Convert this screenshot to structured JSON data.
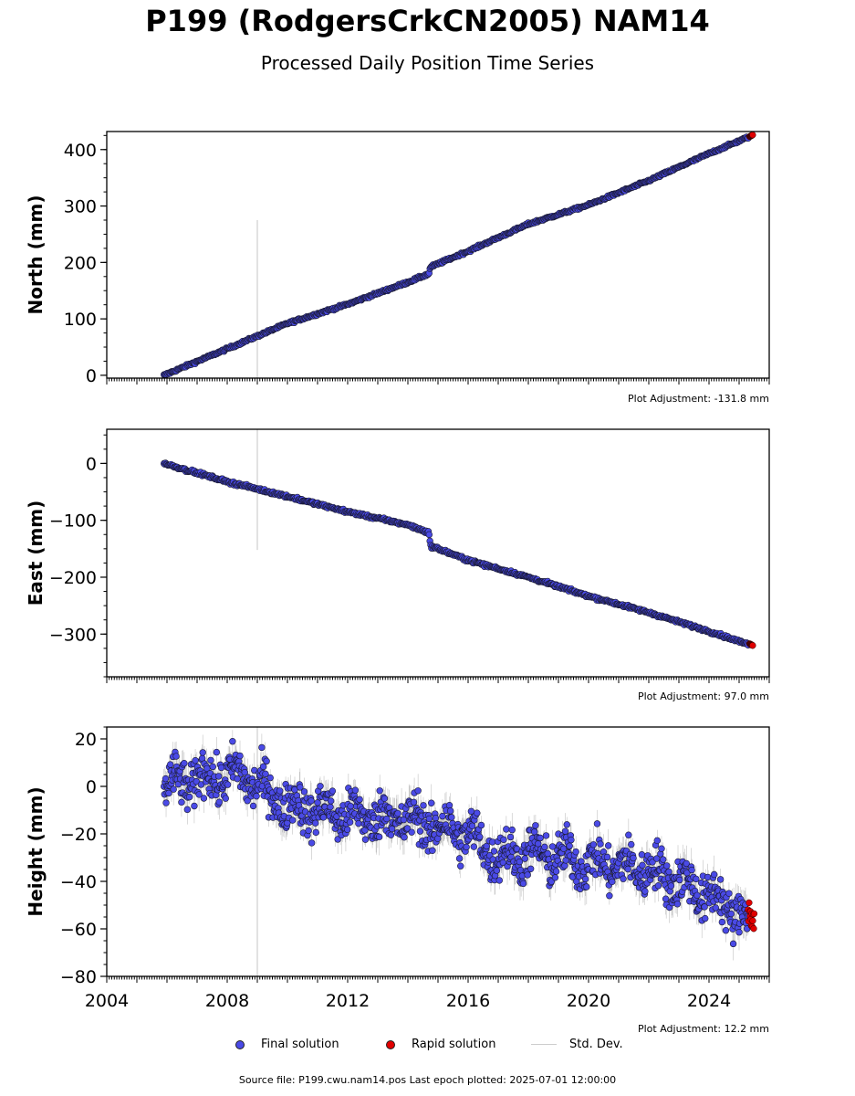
{
  "header": {
    "title": "P199 (RodgersCrkCN2005) NAM14",
    "subtitle": "Processed Daily Position Time Series"
  },
  "legend": {
    "final_label": "Final solution",
    "rapid_label": "Rapid solution",
    "std_label": "Std. Dev."
  },
  "footer": {
    "source_text": "Source file: P199.cwu.nam14.pos  Last epoch plotted: 2025-07-01 12:00:00"
  },
  "colors": {
    "final": "#4a4ae6",
    "rapid": "#e00000",
    "std_dev": "#bbbbbb",
    "marker_edge": "#1a1a33"
  },
  "chart_data": [
    {
      "type": "scatter",
      "ylabel": "North (mm)",
      "adjustment_label": "Plot Adjustment: -131.8 mm",
      "xlim": [
        2004,
        2026
      ],
      "ylim": [
        -5,
        432
      ],
      "y_ticks": [
        0,
        100,
        200,
        300,
        400
      ],
      "y_tick_labels": [
        "0",
        "100",
        "200",
        "300",
        "400"
      ],
      "series": [
        {
          "x": [
            2005.9,
            2008.0,
            2010.0,
            2012.0,
            2014.0,
            2014.7,
            2014.75,
            2016.0,
            2018.0,
            2020.0,
            2022.0,
            2024.0,
            2025.3
          ],
          "y": [
            0,
            47,
            92,
            126,
            165,
            180,
            192,
            220,
            268,
            302,
            345,
            393,
            422
          ]
        }
      ],
      "rapid": {
        "x": [
          2025.35,
          2025.45
        ],
        "y": [
          423,
          426
        ]
      },
      "spike": {
        "x": 2009.0,
        "y_low": -5,
        "y_high": 275
      },
      "noise": 1.5
    },
    {
      "type": "scatter",
      "ylabel": "East (mm)",
      "adjustment_label": "Plot Adjustment: 97.0 mm",
      "xlim": [
        2004,
        2026
      ],
      "ylim": [
        -375,
        60
      ],
      "y_ticks": [
        0,
        -100,
        -200,
        -300
      ],
      "y_tick_labels": [
        "0",
        "−100",
        "−200",
        "−300"
      ],
      "series": [
        {
          "x": [
            2005.9,
            2008.0,
            2010.0,
            2012.0,
            2014.0,
            2014.7,
            2014.75,
            2016.0,
            2018.0,
            2020.0,
            2022.0,
            2024.0,
            2025.3
          ],
          "y": [
            0,
            -32,
            -58,
            -85,
            -108,
            -122,
            -145,
            -170,
            -200,
            -233,
            -262,
            -295,
            -318
          ]
        }
      ],
      "rapid": {
        "x": [
          2025.35,
          2025.45
        ],
        "y": [
          -317,
          -320
        ]
      },
      "spike": {
        "x": 2009.0,
        "y_low": -152,
        "y_high": 60
      },
      "noise": 1.8
    },
    {
      "type": "scatter",
      "ylabel": "Height (mm)",
      "adjustment_label": "Plot Adjustment: 12.2 mm",
      "xlim": [
        2004,
        2026
      ],
      "ylim": [
        -80,
        25
      ],
      "y_ticks": [
        20,
        0,
        -20,
        -40,
        -60,
        -80
      ],
      "y_tick_labels": [
        "20",
        "0",
        "−20",
        "−40",
        "−60",
        "−80"
      ],
      "x_ticks": [
        2004,
        2008,
        2012,
        2016,
        2020,
        2024
      ],
      "x_tick_labels": [
        "2004",
        "2008",
        "2012",
        "2016",
        "2020",
        "2024"
      ],
      "series": [
        {
          "x": [
            2005.9,
            2007.0,
            2008.5,
            2010.0,
            2012.0,
            2014.0,
            2016.0,
            2017.0,
            2018.0,
            2020.0,
            2022.0,
            2023.0,
            2024.0,
            2025.3
          ],
          "y": [
            0,
            3,
            5,
            -8,
            -12,
            -14,
            -20,
            -30,
            -28,
            -32,
            -35,
            -40,
            -46,
            -56
          ]
        }
      ],
      "rapid": {
        "x": [
          2025.3,
          2025.5
        ],
        "y": [
          -48,
          -60
        ]
      },
      "spike": {
        "x": 2009.0,
        "y_low": -80,
        "y_high": 25
      },
      "noise": 7
    }
  ]
}
